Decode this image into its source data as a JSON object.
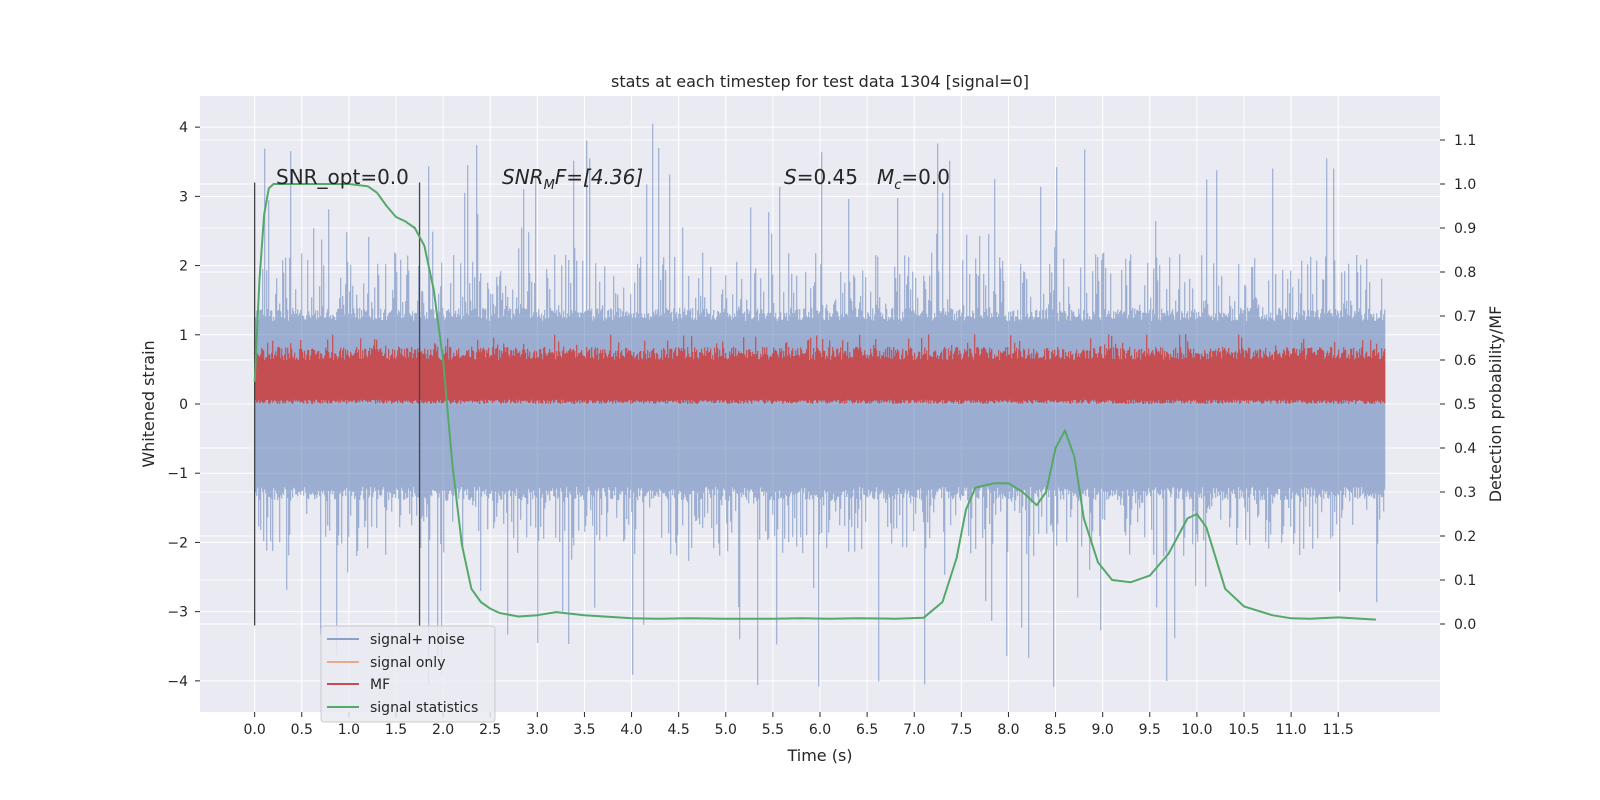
{
  "chart_data": {
    "type": "line",
    "title": "stats at each timestep for test data 1304 [signal=0]",
    "xlabel": "Time (s)",
    "ylabel_left": "Whitened strain",
    "ylabel_right": "Detection probability/MF",
    "xlim": [
      -0.58,
      12.58
    ],
    "ylim_left": [
      -4.45,
      4.45
    ],
    "ylim_right": [
      -0.2,
      1.2
    ],
    "x_ticks": [
      "0.0",
      "0.5",
      "1.0",
      "1.5",
      "2.0",
      "2.5",
      "3.0",
      "3.5",
      "4.0",
      "4.5",
      "5.0",
      "5.5",
      "6.0",
      "6.5",
      "7.0",
      "7.5",
      "8.0",
      "8.5",
      "9.0",
      "9.5",
      "10.0",
      "10.5",
      "11.0",
      "11.5"
    ],
    "y_ticks_left": [
      "4",
      "3",
      "2",
      "1",
      "0",
      "−1",
      "−2",
      "−3",
      "−4"
    ],
    "y_ticks_right": [
      "1.1",
      "1.0",
      "0.9",
      "0.8",
      "0.7",
      "0.6",
      "0.5",
      "0.4",
      "0.3",
      "0.2",
      "0.1",
      "0.0"
    ],
    "grid": true,
    "legend_position": "lower-left",
    "annotations": {
      "snr_opt": "SNR_opt=0.0",
      "snr_mf_main": "SNR",
      "snr_mf_sub": "M",
      "snr_mf_tail": "F=[4.36]",
      "s_var": "S",
      "s_val": "=0.45",
      "mc_var": "M",
      "mc_sub": "c",
      "mc_val": "=0.0"
    },
    "vertical_lines_x": [
      0.0,
      1.75
    ],
    "series": [
      {
        "name": "signal+ noise",
        "color": "#4c72b0",
        "kind": "noise",
        "x_range": [
          0.0,
          12.0
        ],
        "typical_range": [
          -1.3,
          1.3
        ],
        "extreme_range": [
          -4.1,
          4.1
        ]
      },
      {
        "name": "signal only",
        "color": "#dd8452",
        "kind": "flat",
        "value": 0.0
      },
      {
        "name": "MF",
        "color": "#c44e52",
        "kind": "band",
        "axis": "right",
        "x_range": [
          0.0,
          12.0
        ],
        "band_range": [
          0.5,
          0.63
        ],
        "max_value": 0.66
      },
      {
        "name": "signal statistics",
        "color": "#55a868",
        "axis": "right",
        "x": [
          0.0,
          0.05,
          0.1,
          0.15,
          0.2,
          0.3,
          0.5,
          0.8,
          1.0,
          1.2,
          1.3,
          1.4,
          1.5,
          1.6,
          1.7,
          1.8,
          1.9,
          2.0,
          2.05,
          2.1,
          2.2,
          2.3,
          2.4,
          2.5,
          2.6,
          2.8,
          3.0,
          3.2,
          3.5,
          4.0,
          4.3,
          4.6,
          5.0,
          5.5,
          5.8,
          6.1,
          6.4,
          6.8,
          7.1,
          7.3,
          7.45,
          7.55,
          7.65,
          7.85,
          8.0,
          8.15,
          8.3,
          8.4,
          8.5,
          8.6,
          8.7,
          8.8,
          8.95,
          9.1,
          9.3,
          9.5,
          9.7,
          9.9,
          10.0,
          10.1,
          10.3,
          10.5,
          10.8,
          11.0,
          11.2,
          11.5,
          11.9
        ],
        "y": [
          0.55,
          0.78,
          0.93,
          0.99,
          1.0,
          1.0,
          1.0,
          1.0,
          1.0,
          0.995,
          0.98,
          0.95,
          0.925,
          0.915,
          0.9,
          0.86,
          0.76,
          0.6,
          0.48,
          0.36,
          0.18,
          0.08,
          0.05,
          0.035,
          0.025,
          0.017,
          0.02,
          0.027,
          0.02,
          0.013,
          0.012,
          0.013,
          0.012,
          0.012,
          0.013,
          0.012,
          0.013,
          0.012,
          0.014,
          0.05,
          0.15,
          0.26,
          0.31,
          0.32,
          0.32,
          0.3,
          0.27,
          0.3,
          0.4,
          0.44,
          0.38,
          0.24,
          0.14,
          0.1,
          0.095,
          0.11,
          0.16,
          0.24,
          0.25,
          0.22,
          0.08,
          0.04,
          0.02,
          0.013,
          0.012,
          0.015,
          0.01
        ]
      }
    ]
  }
}
